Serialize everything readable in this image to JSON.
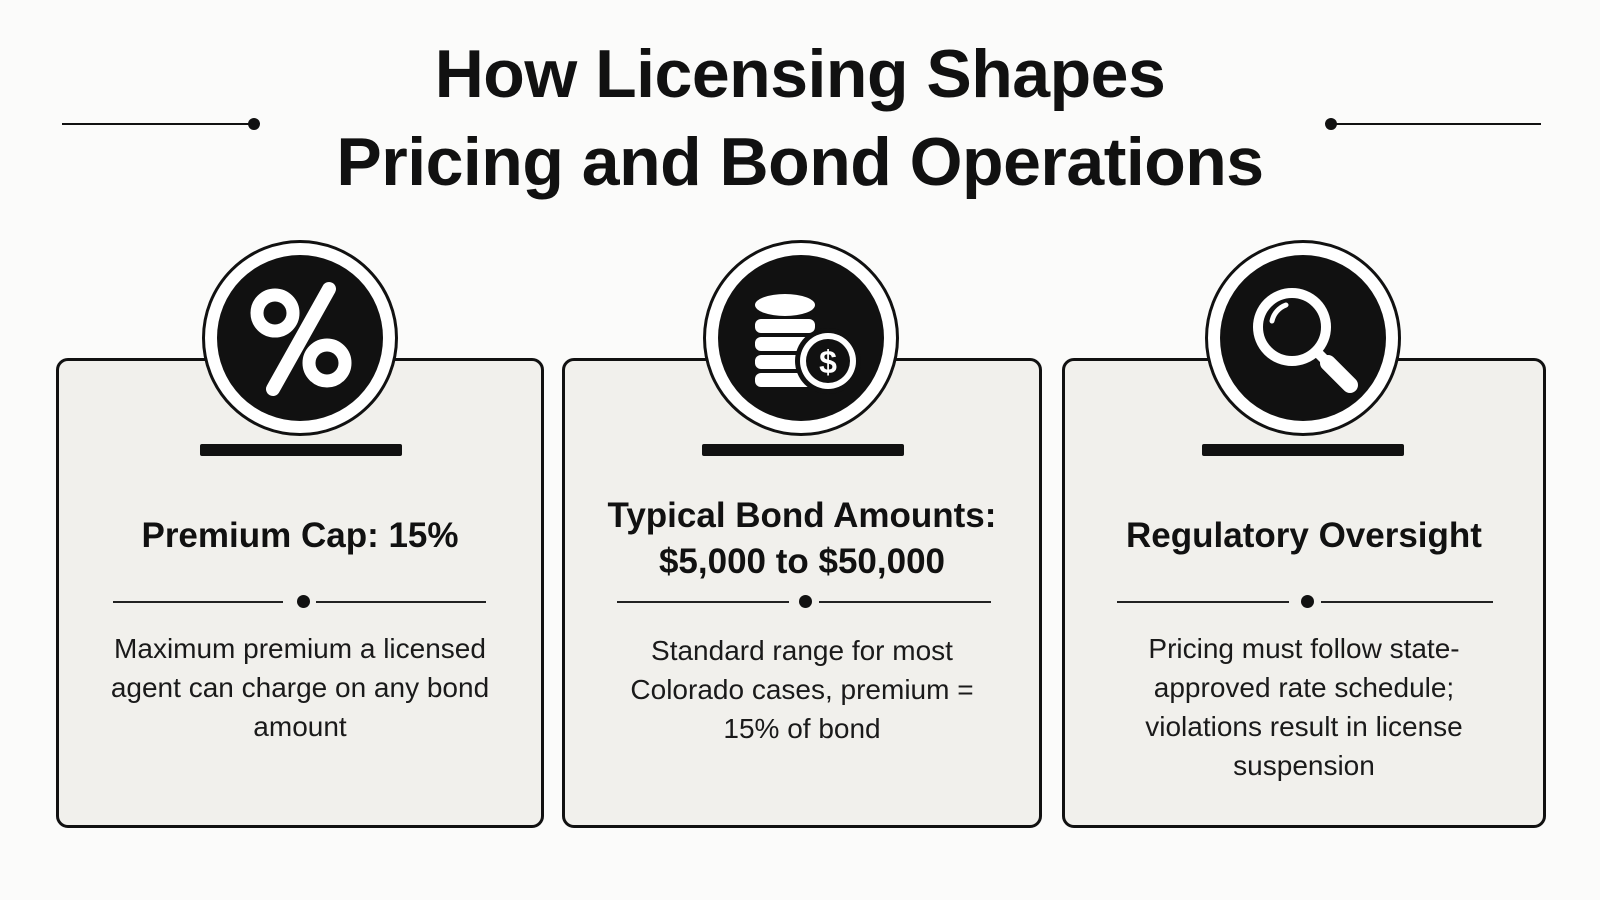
{
  "header": {
    "title_line1": "How Licensing Shapes",
    "title_line2": "Pricing and Bond Operations"
  },
  "cards": [
    {
      "icon": "percent-icon",
      "heading": "Premium Cap: 15%",
      "body": "Maximum premium a licensed agent can charge on any bond amount"
    },
    {
      "icon": "coins-dollar-icon",
      "heading_line1": "Typical Bond Amounts:",
      "heading_line2": "$5,000 to $50,000",
      "body": "Standard range for most Colorado cases, premium = 15% of bond"
    },
    {
      "icon": "magnifying-glass-icon",
      "heading": "Regulatory Oversight",
      "body": "Pricing must follow state-approved rate schedule; violations result in license suspension"
    }
  ]
}
